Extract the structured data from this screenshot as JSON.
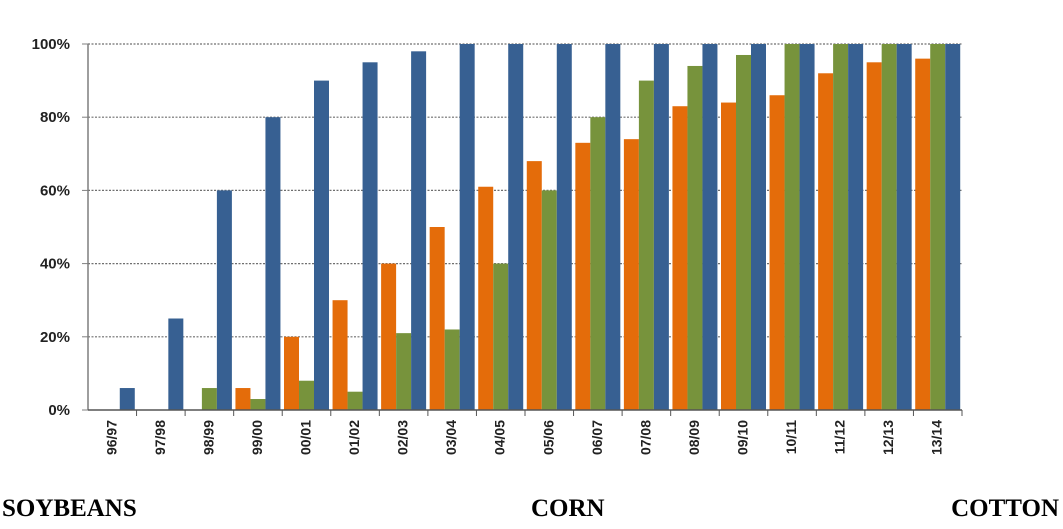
{
  "chart_data": {
    "type": "bar",
    "categories": [
      "96/97",
      "97/98",
      "98/99",
      "99/00",
      "00/01",
      "01/02",
      "02/03",
      "03/04",
      "04/05",
      "05/06",
      "06/07",
      "07/08",
      "08/09",
      "09/10",
      "10/11",
      "11/12",
      "12/13",
      "13/14"
    ],
    "y_tick_labels": [
      "0%",
      "20%",
      "40%",
      "60%",
      "80%",
      "100%"
    ],
    "ylim": [
      0,
      100
    ],
    "grid": true,
    "series": [
      {
        "color": "#e46c0a",
        "values": [
          0,
          0,
          0,
          6,
          20,
          30,
          40,
          50,
          61,
          68,
          73,
          74,
          83,
          84,
          86,
          92,
          95,
          96
        ]
      },
      {
        "color": "#77933c",
        "values": [
          0,
          0,
          6,
          3,
          8,
          5,
          21,
          22,
          40,
          60,
          80,
          90,
          94,
          97,
          100,
          100,
          100,
          100
        ]
      },
      {
        "color": "#376092",
        "values": [
          6,
          25,
          60,
          80,
          90,
          95,
          98,
          100,
          100,
          100,
          100,
          100,
          100,
          100,
          100,
          100,
          100,
          100
        ]
      }
    ]
  },
  "labels_row": [
    "SOYBEANS",
    "CORN",
    "COTTON"
  ]
}
